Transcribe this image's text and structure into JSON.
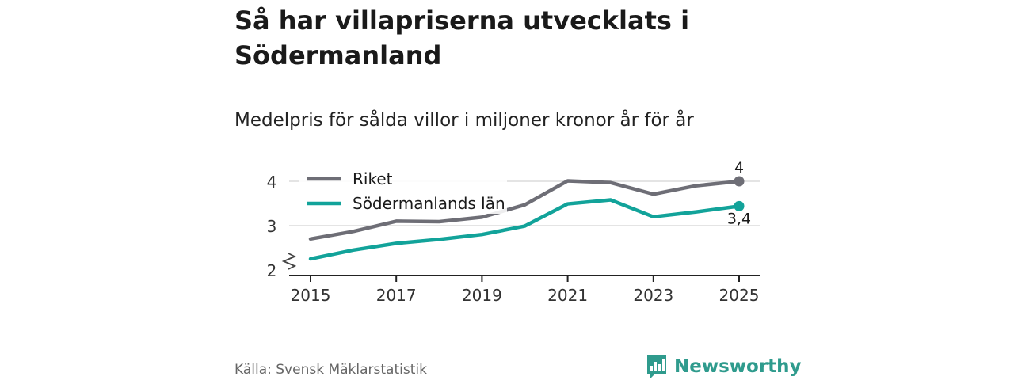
{
  "title": "Så har villapriserna utvecklats i Södermanland",
  "subtitle": "Medelpris för sålda villor i miljoner kronor år för år",
  "source": "Källa: Svensk Mäklarstatistik",
  "brand": "Newsworthy",
  "colors": {
    "riket": "#6e6e76",
    "lan": "#12a39a",
    "brand": "#2f9b8d",
    "grid": "#dcdcdc"
  },
  "chart_data": {
    "type": "line",
    "x": [
      2015,
      2016,
      2017,
      2018,
      2019,
      2020,
      2021,
      2022,
      2023,
      2024,
      2025
    ],
    "x_ticks": [
      "2015",
      "2017",
      "2019",
      "2021",
      "2023",
      "2025"
    ],
    "y_ticks": [
      "2",
      "3",
      "4"
    ],
    "ylim": [
      2,
      4.2
    ],
    "axis_break": true,
    "legend_position": "top-left",
    "series": [
      {
        "name": "Riket",
        "color": "#6e6e76",
        "values": [
          2.7,
          2.87,
          3.1,
          3.09,
          3.19,
          3.47,
          4.01,
          3.97,
          3.71,
          3.9,
          4.0
        ],
        "end_label": "4"
      },
      {
        "name": "Södermanlands län",
        "color": "#12a39a",
        "values": [
          2.25,
          2.45,
          2.6,
          2.69,
          2.8,
          2.99,
          3.49,
          3.58,
          3.2,
          3.31,
          3.44
        ],
        "end_label": "3,4"
      }
    ]
  }
}
